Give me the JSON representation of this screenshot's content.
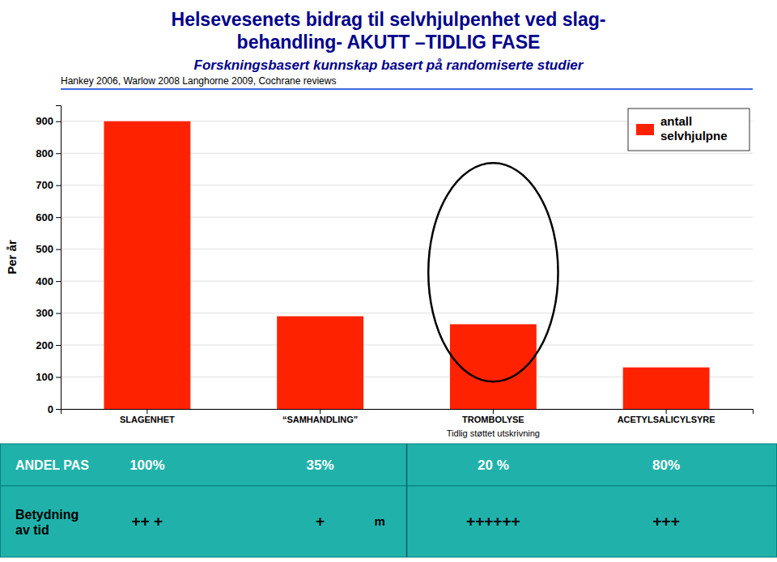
{
  "chart_data": {
    "type": "bar",
    "title": "Helsevesenets bidrag til selvhjulpenhet ved slag-\nbehandling-  AKUTT –TIDLIG FASE",
    "subtitle": "Forskningsbasert  kunnskap basert på randomiserte studier",
    "ylabel": "Per år",
    "categories": [
      "SLAGENHET",
      "“SAMHANDLING”",
      "TROMBOLYSE",
      "ACETYLSALICYLSYRE"
    ],
    "series": [
      {
        "name": "antall\nselvhjulpne",
        "color": "#FF2200",
        "values": [
          900,
          290,
          265,
          130
        ]
      }
    ],
    "ylim": [
      0,
      950
    ],
    "yticks": [
      0,
      100,
      200,
      300,
      400,
      500,
      600,
      700,
      800,
      900
    ],
    "grid": true,
    "legend": "upper right",
    "annotations": [
      {
        "text": "Hankey 2006, Warlow 2008  Langhorne 2009, Cochrane reviews"
      },
      {
        "text": "Tidlig støttet utskrivning",
        "x": "TROMBOLYSE"
      }
    ],
    "table": [
      {
        "label": "ANDEL PAS",
        "values": [
          "100%",
          "35%",
          "20 %",
          "80%"
        ]
      },
      {
        "label": "Betydning\nav tid",
        "values": [
          "++ +",
          "+",
          "++++++",
          "+++"
        ],
        "note": "m"
      }
    ]
  }
}
